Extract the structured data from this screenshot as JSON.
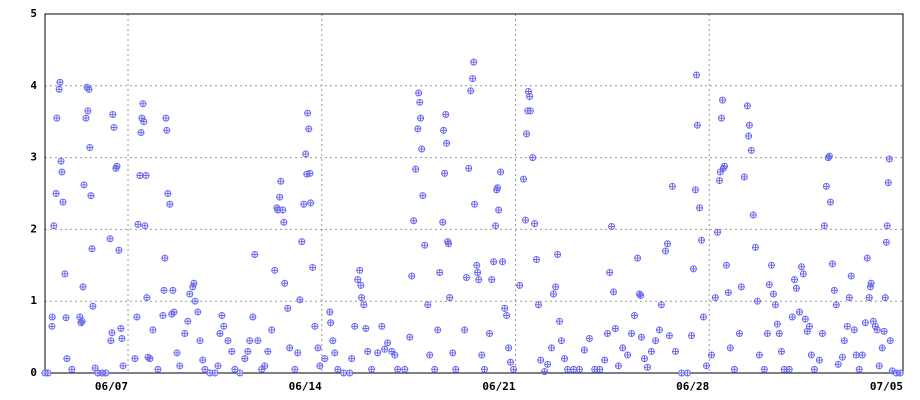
{
  "chart_data": {
    "type": "scatter",
    "x": [
      0.0,
      0.11,
      0.25,
      0.26,
      0.32,
      0.4,
      0.43,
      0.51,
      0.54,
      0.58,
      0.61,
      0.65,
      0.72,
      0.76,
      0.79,
      0.97,
      1.26,
      1.3,
      1.34,
      1.37,
      1.41,
      1.48,
      1.52,
      1.55,
      1.59,
      1.62,
      1.66,
      1.7,
      1.73,
      1.81,
      1.91,
      2.06,
      2.2,
      2.35,
      2.38,
      2.42,
      2.45,
      2.49,
      2.56,
      2.6,
      2.67,
      2.74,
      2.78,
      2.82,
      3.25,
      3.32,
      3.36,
      3.43,
      3.47,
      3.5,
      3.54,
      3.57,
      3.61,
      3.65,
      3.68,
      3.72,
      3.79,
      3.9,
      4.08,
      4.26,
      4.3,
      4.33,
      4.37,
      4.4,
      4.44,
      4.51,
      4.58,
      4.62,
      4.66,
      4.77,
      4.87,
      5.05,
      5.16,
      5.23,
      5.34,
      5.38,
      5.42,
      5.52,
      5.6,
      5.7,
      5.78,
      5.96,
      6.14,
      6.25,
      6.32,
      6.39,
      6.46,
      6.61,
      6.75,
      6.86,
      7.04,
      7.22,
      7.33,
      7.4,
      7.51,
      7.58,
      7.69,
      7.83,
      7.94,
      8.05,
      8.19,
      8.3,
      8.38,
      8.41,
      8.48,
      8.52,
      8.59,
      8.63,
      8.66,
      8.77,
      8.84,
      9.03,
      9.13,
      9.21,
      9.28,
      9.35,
      9.42,
      9.46,
      9.49,
      9.53,
      9.57,
      9.6,
      9.67,
      9.75,
      9.86,
      9.93,
      10.11,
      10.29,
      10.32,
      10.4,
      10.47,
      10.58,
      10.79,
      11.01,
      11.08,
      11.19,
      11.3,
      11.37,
      11.41,
      11.44,
      11.52,
      11.59,
      11.66,
      11.8,
      12.02,
      12.17,
      12.27,
      12.38,
      12.53,
      12.64,
      12.74,
      13.0,
      13.18,
      13.25,
      13.32,
      13.39,
      13.47,
      13.5,
      13.54,
      13.57,
      13.61,
      13.65,
      13.72,
      13.83,
      13.9,
      14.08,
      14.19,
      14.26,
      14.37,
      14.4,
      14.44,
      14.48,
      14.51,
      14.55,
      14.58,
      14.62,
      14.73,
      14.84,
      15.16,
      15.23,
      15.31,
      15.38,
      15.45,
      15.49,
      15.52,
      15.6,
      15.63,
      15.67,
      15.78,
      15.88,
      16.06,
      16.14,
      16.21,
      16.28,
      16.32,
      16.35,
      16.39,
      16.46,
      16.53,
      16.61,
      16.68,
      16.75,
      16.82,
      16.93,
      17.15,
      17.29,
      17.36,
      17.4,
      17.44,
      17.47,
      17.51,
      17.54,
      17.62,
      17.69,
      17.76,
      17.83,
      17.91,
      18.05,
      18.16,
      18.3,
      18.37,
      18.45,
      18.52,
      18.59,
      18.66,
      18.77,
      18.88,
      19.1,
      19.31,
      19.49,
      19.67,
      19.86,
      20.04,
      20.22,
      20.32,
      20.4,
      20.47,
      20.54,
      20.61,
      20.72,
      20.87,
      21.05,
      21.19,
      21.3,
      21.41,
      21.48,
      21.52,
      21.55,
      21.66,
      21.77,
      21.91,
      22.06,
      22.2,
      22.27,
      22.42,
      22.49,
      22.56,
      22.67,
      22.78,
      23.0,
      23.21,
      23.36,
      23.43,
      23.5,
      23.54,
      23.57,
      23.65,
      23.72,
      23.79,
      23.9,
      24.08,
      24.22,
      24.3,
      24.37,
      24.4,
      24.44,
      24.48,
      24.51,
      24.55,
      24.62,
      24.69,
      24.76,
      24.91,
      25.09,
      25.16,
      25.27,
      25.38,
      25.42,
      25.45,
      25.52,
      25.59,
      25.67,
      25.74,
      25.81,
      25.99,
      26.1,
      26.17,
      26.25,
      26.32,
      26.39,
      26.46,
      26.53,
      26.61,
      26.71,
      26.89,
      27.0,
      27.08,
      27.15,
      27.26,
      27.33,
      27.4,
      27.47,
      27.54,
      27.62,
      27.69,
      27.8,
      27.98,
      28.09,
      28.16,
      28.23,
      28.3,
      28.34,
      28.38,
      28.45,
      28.52,
      28.59,
      28.66,
      28.81,
      28.88,
      28.99,
      29.06,
      29.13,
      29.24,
      29.31,
      29.42,
      29.53,
      29.64,
      29.71,
      29.78,
      29.82,
      29.85,
      29.93,
      30.0,
      30.07,
      30.14,
      30.25,
      30.32,
      30.36,
      30.4,
      30.43,
      30.47,
      30.51,
      30.54,
      30.61,
      30.76,
      30.9
    ],
    "values": [
      0,
      0,
      0.65,
      0.78,
      2.05,
      2.5,
      3.55,
      3.95,
      4.05,
      2.95,
      2.8,
      2.38,
      1.38,
      0.77,
      0.2,
      0.05,
      0.78,
      0.7,
      0.72,
      1.2,
      2.62,
      3.55,
      3.98,
      3.65,
      3.95,
      3.14,
      2.47,
      1.73,
      0.93,
      0.07,
      0,
      0,
      0,
      1.87,
      0.45,
      0.56,
      3.6,
      3.42,
      2.85,
      2.88,
      1.71,
      0.62,
      0.48,
      0.1,
      0.2,
      0.78,
      2.07,
      2.75,
      3.35,
      3.55,
      3.75,
      3.5,
      2.05,
      2.75,
      1.05,
      0.22,
      0.2,
      0.6,
      0.05,
      0.8,
      1.15,
      1.6,
      3.55,
      3.38,
      2.5,
      2.35,
      0.82,
      1.15,
      0.85,
      0.28,
      0.1,
      0.55,
      0.72,
      1.1,
      1.2,
      1.25,
      1.0,
      0.85,
      0.45,
      0.18,
      0.05,
      0,
      0,
      0.1,
      0.55,
      0.8,
      0.65,
      0.45,
      0.3,
      0.05,
      0,
      0.2,
      0.3,
      0.45,
      0.78,
      1.65,
      0.45,
      0.05,
      0.1,
      0.3,
      0.6,
      1.43,
      2.3,
      2.27,
      2.45,
      2.67,
      2.27,
      2.1,
      1.25,
      0.9,
      0.35,
      0.05,
      0.28,
      1.02,
      1.83,
      2.35,
      3.05,
      2.77,
      3.62,
      3.4,
      2.78,
      2.37,
      1.47,
      0.65,
      0.35,
      0.1,
      0.2,
      0.85,
      0.7,
      0.45,
      0.28,
      0.05,
      0,
      0,
      0.2,
      0.65,
      1.3,
      1.43,
      1.22,
      1.05,
      0.95,
      0.62,
      0.3,
      0.05,
      0.28,
      0.65,
      0.33,
      0.42,
      0.3,
      0.25,
      0.05,
      0.05,
      0.5,
      1.35,
      2.12,
      2.84,
      3.4,
      3.9,
      3.77,
      3.55,
      3.12,
      2.47,
      1.78,
      0.95,
      0.25,
      0.05,
      0.6,
      1.4,
      2.1,
      3.38,
      2.78,
      3.6,
      3.2,
      1.83,
      1.8,
      1.05,
      0.28,
      0.05,
      0.6,
      1.33,
      2.85,
      3.93,
      4.1,
      4.33,
      2.35,
      1.5,
      1.4,
      1.3,
      0.25,
      0.05,
      0.55,
      1.3,
      1.55,
      2.05,
      2.55,
      2.58,
      2.27,
      2.8,
      1.55,
      0.9,
      0.8,
      0.35,
      0.15,
      0.05,
      1.22,
      2.7,
      2.13,
      3.33,
      3.65,
      3.92,
      3.85,
      3.65,
      3.0,
      2.08,
      1.58,
      0.95,
      0.18,
      0.02,
      0.12,
      0.35,
      1.1,
      1.2,
      1.65,
      0.72,
      0.45,
      0.2,
      0.05,
      0.05,
      0.05,
      0.32,
      0.48,
      0.05,
      0.05,
      0.18,
      0.55,
      1.4,
      2.04,
      1.13,
      0.62,
      0.1,
      0.35,
      0.25,
      0.55,
      0.8,
      1.6,
      1.1,
      1.08,
      0.5,
      0.2,
      0.08,
      0.3,
      0.45,
      0.6,
      0.95,
      1.7,
      1.8,
      0.52,
      2.6,
      0.3,
      0,
      0,
      0.52,
      1.45,
      2.55,
      4.15,
      3.45,
      2.3,
      1.85,
      0.78,
      0.1,
      0.25,
      1.05,
      1.96,
      2.68,
      2.8,
      3.55,
      3.8,
      2.85,
      2.88,
      1.5,
      1.12,
      0.35,
      0.05,
      0.55,
      1.2,
      2.73,
      3.72,
      3.3,
      3.45,
      3.1,
      2.2,
      1.75,
      1.0,
      0.25,
      0.05,
      0.55,
      1.23,
      1.5,
      1.1,
      0.95,
      0.68,
      0.55,
      0.3,
      0.05,
      0.05,
      0.78,
      1.3,
      1.18,
      0.85,
      1.48,
      1.38,
      0.75,
      0.58,
      0.65,
      0.25,
      0.05,
      0.18,
      0.55,
      2.05,
      2.6,
      3.0,
      3.02,
      2.38,
      1.52,
      1.15,
      0.95,
      0.12,
      0.22,
      0.45,
      0.65,
      1.05,
      1.35,
      0.6,
      0.25,
      0.05,
      0.25,
      0.7,
      1.6,
      1.05,
      1.2,
      1.25,
      0.72,
      0.65,
      0.6,
      0.1,
      0.35,
      0.58,
      1.05,
      1.82,
      2.05,
      2.65,
      2.98,
      0.45,
      0.03,
      0,
      0
    ],
    "color": "#6a6af0",
    "xlim": [
      0,
      31
    ],
    "xticks": [
      {
        "value": 3,
        "label": "06/07"
      },
      {
        "value": 10,
        "label": "06/14"
      },
      {
        "value": 17,
        "label": "06/21"
      },
      {
        "value": 24,
        "label": "06/28"
      },
      {
        "value": 31,
        "label": "07/05"
      }
    ],
    "ylim": [
      0,
      5
    ],
    "yticks": [
      0,
      1,
      2,
      3,
      4,
      5
    ],
    "grid": true
  }
}
